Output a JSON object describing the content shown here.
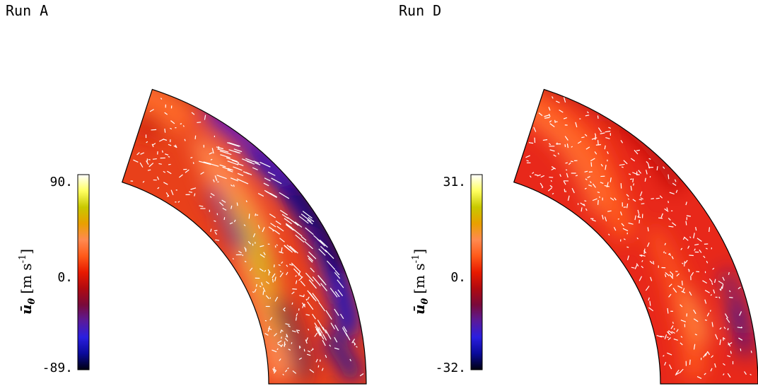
{
  "chart_data": [
    {
      "type": "heatmap",
      "title": "Run A",
      "colorbar": {
        "label_symbol": "ū",
        "label_subscript": "θ",
        "label_unit": "[m s",
        "label_exp": "-1",
        "label_close": "]",
        "max": 90,
        "mid": 0,
        "min": -89,
        "tick_labels": [
          "90.",
          "0.",
          "-89."
        ],
        "colormap": [
          "#000010",
          "#0a0a9a",
          "#2a1ee0",
          "#5a1a9a",
          "#7a0a3a",
          "#b00a10",
          "#e81a00",
          "#ff5a1a",
          "#ff8a50",
          "#e8a000",
          "#c8c800",
          "#ffff60",
          "#ffffff"
        ]
      },
      "grid": false,
      "legend": "colorbar-left"
    },
    {
      "type": "heatmap",
      "title": "Run D",
      "colorbar": {
        "label_symbol": "ū",
        "label_subscript": "θ",
        "label_unit": "[m s",
        "label_exp": "-1",
        "label_close": "]",
        "max": 31,
        "mid": 0,
        "min": -32,
        "tick_labels": [
          "31.",
          "0.",
          "-32."
        ],
        "colormap": [
          "#000010",
          "#0a0a9a",
          "#2a1ee0",
          "#5a1a9a",
          "#7a0a3a",
          "#b00a10",
          "#e81a00",
          "#ff5a1a",
          "#ff8a50",
          "#e8a000",
          "#c8c800",
          "#ffff60",
          "#ffffff"
        ]
      },
      "grid": false,
      "legend": "colorbar-left"
    }
  ]
}
